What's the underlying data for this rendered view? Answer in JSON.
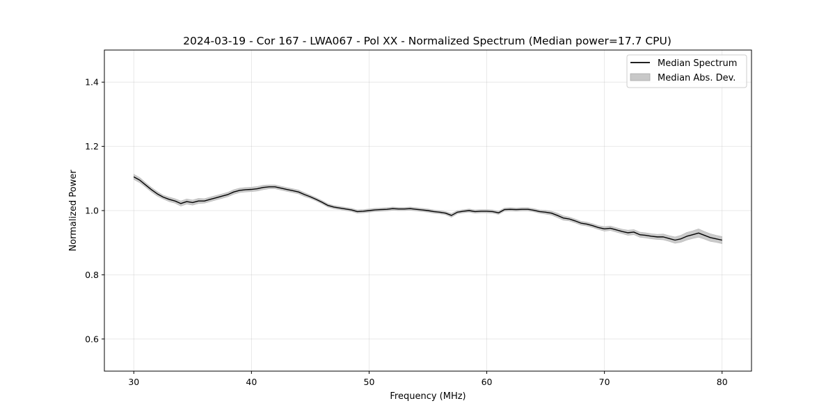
{
  "chart_data": {
    "type": "line",
    "title": "2024-03-19 - Cor 167 - LWA067 - Pol XX - Normalized Spectrum (Median power=17.7 CPU)",
    "xlabel": "Frequency (MHz)",
    "ylabel": "Normalized Power",
    "xlim": [
      27.5,
      82.5
    ],
    "ylim": [
      0.5,
      1.5
    ],
    "xticks": [
      30,
      40,
      50,
      60,
      70,
      80
    ],
    "xtick_labels": [
      "30",
      "40",
      "50",
      "60",
      "70",
      "80"
    ],
    "yticks": [
      0.6,
      0.8,
      1.0,
      1.2,
      1.4
    ],
    "ytick_labels": [
      "0.6",
      "0.8",
      "1.0",
      "1.2",
      "1.4"
    ],
    "grid": true,
    "legend_position": "top-right",
    "series": [
      {
        "name": "Median Spectrum",
        "color": "#000000",
        "x": [
          30.0,
          30.5,
          31.0,
          31.5,
          32.0,
          32.5,
          33.0,
          33.5,
          34.0,
          34.5,
          35.0,
          35.5,
          36.0,
          36.5,
          37.0,
          37.5,
          38.0,
          38.5,
          39.0,
          39.5,
          40.0,
          40.5,
          41.0,
          41.5,
          42.0,
          42.5,
          43.0,
          43.5,
          44.0,
          44.5,
          45.0,
          45.5,
          46.0,
          46.5,
          47.0,
          47.5,
          48.0,
          48.5,
          49.0,
          49.5,
          50.0,
          50.5,
          51.0,
          51.5,
          52.0,
          52.5,
          53.0,
          53.5,
          54.0,
          54.5,
          55.0,
          55.5,
          56.0,
          56.5,
          57.0,
          57.5,
          58.0,
          58.5,
          59.0,
          59.5,
          60.0,
          60.5,
          61.0,
          61.5,
          62.0,
          62.5,
          63.0,
          63.5,
          64.0,
          64.5,
          65.0,
          65.5,
          66.0,
          66.5,
          67.0,
          67.5,
          68.0,
          68.5,
          69.0,
          69.5,
          70.0,
          70.5,
          71.0,
          71.5,
          72.0,
          72.5,
          73.0,
          73.5,
          74.0,
          74.5,
          75.0,
          75.5,
          76.0,
          76.5,
          77.0,
          77.5,
          78.0,
          78.5,
          79.0,
          79.5,
          80.0
        ],
        "values": [
          1.105,
          1.095,
          1.08,
          1.065,
          1.052,
          1.042,
          1.035,
          1.03,
          1.022,
          1.028,
          1.025,
          1.03,
          1.03,
          1.035,
          1.04,
          1.045,
          1.05,
          1.058,
          1.063,
          1.065,
          1.066,
          1.068,
          1.072,
          1.074,
          1.074,
          1.07,
          1.066,
          1.062,
          1.058,
          1.05,
          1.043,
          1.035,
          1.026,
          1.016,
          1.011,
          1.008,
          1.005,
          1.002,
          0.997,
          0.998,
          1.0,
          1.002,
          1.003,
          1.004,
          1.006,
          1.005,
          1.005,
          1.006,
          1.004,
          1.002,
          1.0,
          0.997,
          0.995,
          0.992,
          0.985,
          0.995,
          0.998,
          1.0,
          0.997,
          0.998,
          0.998,
          0.997,
          0.993,
          1.003,
          1.004,
          1.003,
          1.004,
          1.004,
          1.001,
          0.997,
          0.995,
          0.992,
          0.985,
          0.977,
          0.974,
          0.968,
          0.961,
          0.958,
          0.953,
          0.947,
          0.943,
          0.945,
          0.94,
          0.935,
          0.931,
          0.933,
          0.925,
          0.923,
          0.92,
          0.918,
          0.918,
          0.913,
          0.908,
          0.912,
          0.92,
          0.925,
          0.93,
          0.923,
          0.916,
          0.912,
          0.908
        ]
      },
      {
        "name": "Median Abs. Dev.",
        "color": "#c8c8c8",
        "spread": [
          0.008,
          0.008,
          0.007,
          0.007,
          0.007,
          0.006,
          0.007,
          0.007,
          0.008,
          0.008,
          0.008,
          0.008,
          0.007,
          0.007,
          0.007,
          0.007,
          0.007,
          0.007,
          0.007,
          0.007,
          0.007,
          0.007,
          0.007,
          0.006,
          0.006,
          0.006,
          0.006,
          0.006,
          0.006,
          0.006,
          0.005,
          0.005,
          0.005,
          0.005,
          0.005,
          0.005,
          0.005,
          0.005,
          0.005,
          0.005,
          0.005,
          0.005,
          0.005,
          0.005,
          0.005,
          0.005,
          0.005,
          0.005,
          0.005,
          0.005,
          0.005,
          0.005,
          0.005,
          0.005,
          0.006,
          0.005,
          0.005,
          0.005,
          0.005,
          0.005,
          0.005,
          0.005,
          0.005,
          0.005,
          0.005,
          0.005,
          0.005,
          0.005,
          0.005,
          0.005,
          0.006,
          0.006,
          0.007,
          0.007,
          0.006,
          0.006,
          0.006,
          0.006,
          0.006,
          0.006,
          0.007,
          0.007,
          0.007,
          0.007,
          0.008,
          0.008,
          0.008,
          0.008,
          0.008,
          0.008,
          0.009,
          0.009,
          0.01,
          0.011,
          0.012,
          0.012,
          0.013,
          0.012,
          0.012,
          0.011,
          0.011
        ]
      }
    ]
  }
}
